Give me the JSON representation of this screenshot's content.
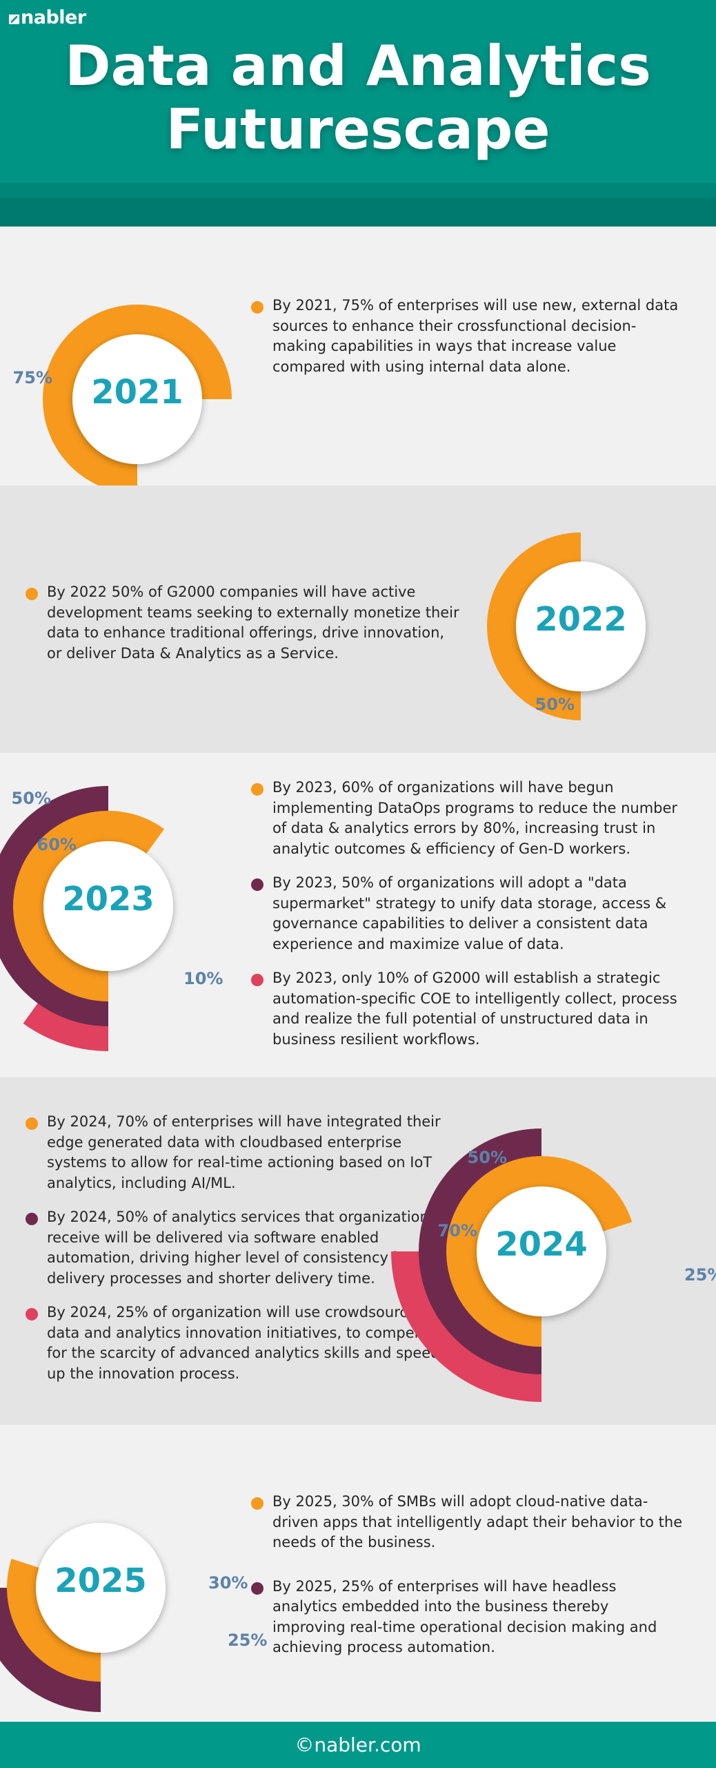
{
  "header": {
    "logo_text": "nabler",
    "title_line1": "Data and Analytics",
    "title_line2": "Futurescape"
  },
  "colors": {
    "teal": "#009485",
    "orange": "#f7991c",
    "purple": "#6e2a4d",
    "pink": "#e0415e",
    "year_text": "#1aa3b8",
    "pct_text": "#5d82a8"
  },
  "sections": [
    {
      "year": "2021",
      "rings": [
        {
          "color": "orange",
          "value": 75,
          "label": "75%"
        }
      ],
      "bullets": [
        {
          "color": "orange",
          "text": "By 2021, 75% of enterprises will use new, external data sources to enhance their crossfunctional decision-making capabilities in ways that increase value compared with using internal data alone."
        }
      ]
    },
    {
      "year": "2022",
      "rings": [
        {
          "color": "orange",
          "value": 50,
          "label": "50%"
        }
      ],
      "bullets": [
        {
          "color": "orange",
          "text": "By 2022 50% of G2000 companies will have active development teams seeking to externally monetize their data to enhance traditional offerings, drive innovation, or deliver Data & Analytics as a Service."
        }
      ]
    },
    {
      "year": "2023",
      "rings": [
        {
          "color": "orange",
          "value": 60,
          "label": "60%"
        },
        {
          "color": "purple",
          "value": 50,
          "label": "50%"
        },
        {
          "color": "pink",
          "value": 10,
          "label": "10%"
        }
      ],
      "bullets": [
        {
          "color": "orange",
          "text": "By 2023, 60% of organizations will have begun implementing DataOps programs to reduce the number of data & analytics errors by 80%, increasing trust in analytic outcomes & efficiency of Gen-D workers."
        },
        {
          "color": "purple",
          "text": "By 2023, 50% of organizations will adopt a \"data supermarket\" strategy to unify data storage, access & governance capabilities to deliver a consistent data experience and maximize value of data."
        },
        {
          "color": "pink",
          "text": "By 2023, only 10% of G2000 will establish a strategic automation-specific COE to intelligently collect, process and realize the full potential of unstructured data in business resilient workflows."
        }
      ]
    },
    {
      "year": "2024",
      "rings": [
        {
          "color": "orange",
          "value": 70,
          "label": "70%"
        },
        {
          "color": "purple",
          "value": 50,
          "label": "50%"
        },
        {
          "color": "pink",
          "value": 25,
          "label": "25%"
        }
      ],
      "bullets": [
        {
          "color": "orange",
          "text": "By 2024, 70% of enterprises will have integrated their edge generated data with cloudbased enterprise systems to allow for real-time actioning based on IoT analytics, including AI/ML."
        },
        {
          "color": "purple",
          "text": "By 2024, 50% of analytics services that organizations receive will be delivered via software enabled automation, driving higher level of consistency in delivery processes and shorter delivery time."
        },
        {
          "color": "pink",
          "text": "By 2024, 25% of organization will use crowdsourcing for data and analytics innovation initiatives, to compensate for the scarcity of advanced analytics skills and speed up the innovation process."
        }
      ]
    },
    {
      "year": "2025",
      "rings": [
        {
          "color": "orange",
          "value": 30,
          "label": "30%"
        },
        {
          "color": "purple",
          "value": 25,
          "label": "25%"
        }
      ],
      "bullets": [
        {
          "color": "orange",
          "text": "By 2025, 30% of SMBs will adopt cloud-native data-driven apps that intelligently adapt their behavior to the needs of the business."
        },
        {
          "color": "purple",
          "text": "By 2025, 25% of enterprises will have headless analytics embedded into the business thereby improving real-time operational decision making and achieving process automation."
        }
      ]
    }
  ],
  "footer": {
    "text": "©nabler.com"
  }
}
